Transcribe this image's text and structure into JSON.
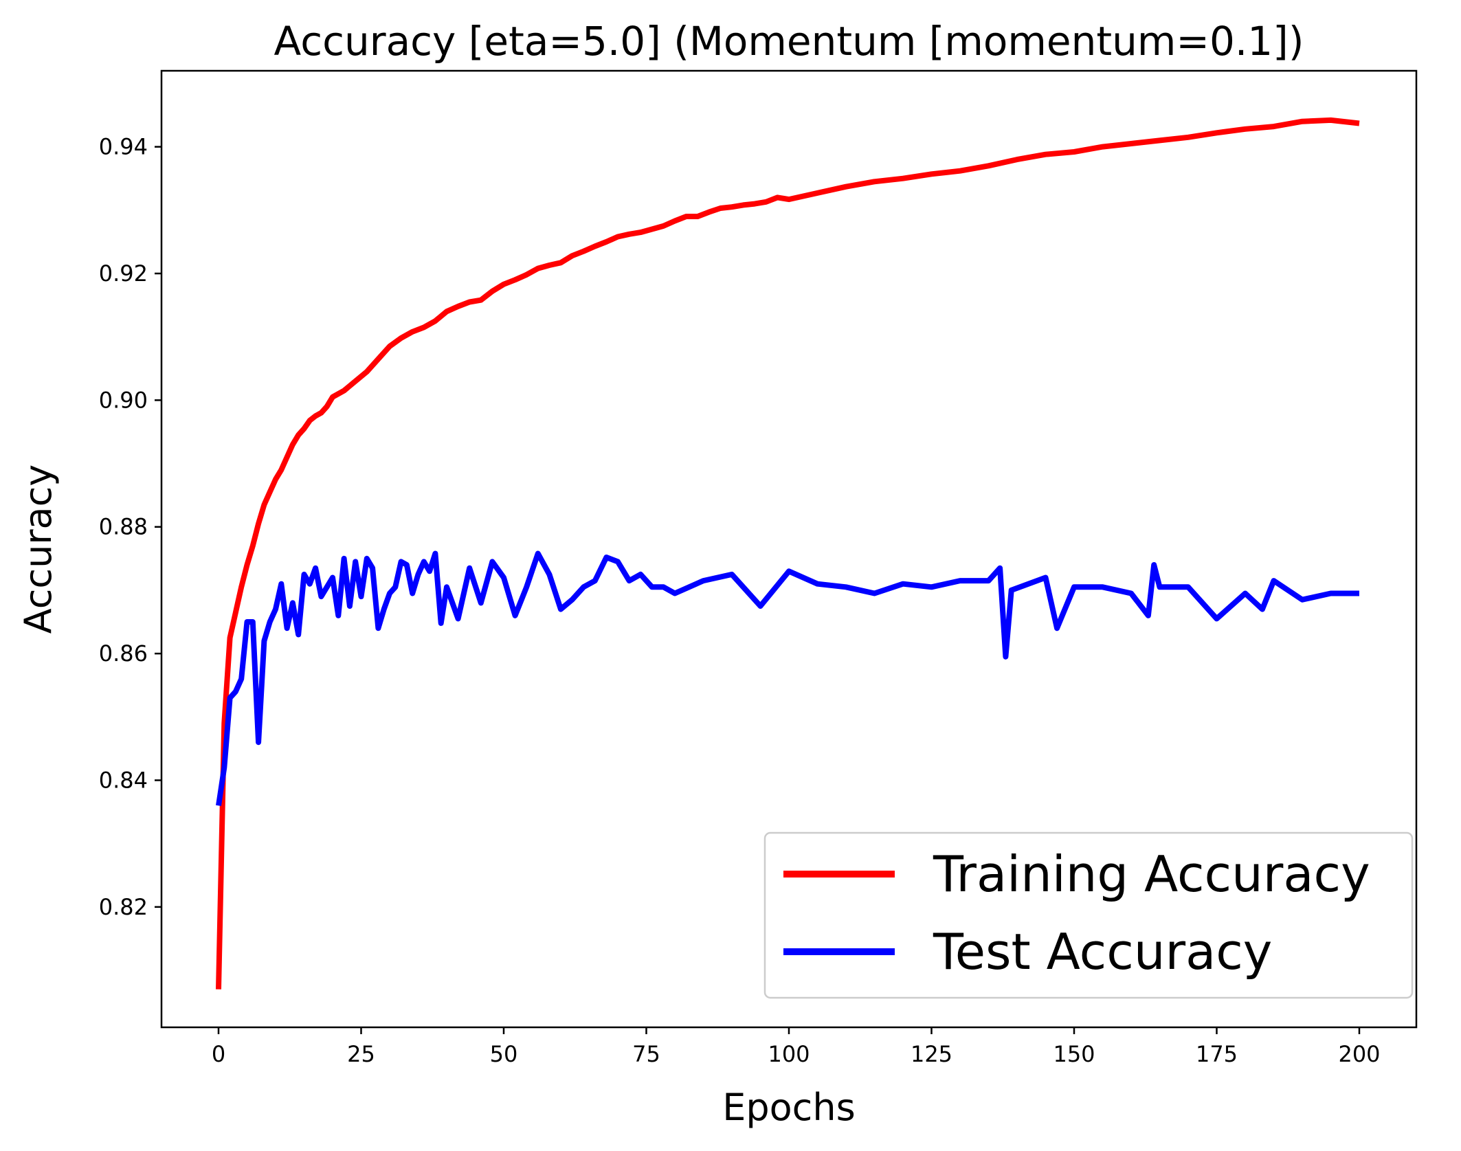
{
  "chart_data": {
    "type": "line",
    "title": "Accuracy [eta=5.0] (Momentum [momentum=0.1])",
    "xlabel": "Epochs",
    "ylabel": "Accuracy",
    "xlim": [
      -10,
      210
    ],
    "ylim": [
      0.801,
      0.952
    ],
    "xticks": [
      0,
      25,
      50,
      75,
      100,
      125,
      150,
      175,
      200
    ],
    "yticks": [
      0.82,
      0.84,
      0.86,
      0.88,
      0.9,
      0.92,
      0.94
    ],
    "xtick_labels": [
      "0",
      "25",
      "50",
      "75",
      "100",
      "125",
      "150",
      "175",
      "200"
    ],
    "ytick_labels": [
      "0.82",
      "0.84",
      "0.86",
      "0.88",
      "0.90",
      "0.92",
      "0.94"
    ],
    "grid": false,
    "legend_position": "lower-right",
    "series": [
      {
        "name": "Training Accuracy",
        "color": "#ff0000",
        "x": [
          0,
          1,
          2,
          3,
          4,
          5,
          6,
          7,
          8,
          9,
          10,
          11,
          12,
          13,
          14,
          15,
          16,
          17,
          18,
          19,
          20,
          22,
          24,
          26,
          28,
          30,
          32,
          34,
          36,
          38,
          40,
          42,
          44,
          46,
          48,
          50,
          52,
          54,
          56,
          58,
          60,
          62,
          64,
          66,
          68,
          70,
          72,
          74,
          76,
          78,
          80,
          82,
          84,
          86,
          88,
          90,
          92,
          94,
          96,
          98,
          100,
          105,
          110,
          115,
          120,
          125,
          130,
          135,
          140,
          145,
          150,
          155,
          160,
          165,
          170,
          175,
          180,
          185,
          190,
          195,
          200
        ],
        "values": [
          0.807,
          0.849,
          0.8625,
          0.8665,
          0.8705,
          0.874,
          0.877,
          0.8805,
          0.8835,
          0.8855,
          0.8875,
          0.889,
          0.891,
          0.893,
          0.8945,
          0.8955,
          0.8968,
          0.8975,
          0.898,
          0.899,
          0.9005,
          0.9015,
          0.903,
          0.9045,
          0.9065,
          0.9085,
          0.9098,
          0.9108,
          0.9115,
          0.9125,
          0.914,
          0.9148,
          0.9155,
          0.9158,
          0.9172,
          0.9183,
          0.919,
          0.9198,
          0.9208,
          0.9213,
          0.9217,
          0.9228,
          0.9235,
          0.9243,
          0.925,
          0.9258,
          0.9262,
          0.9265,
          0.927,
          0.9275,
          0.9283,
          0.929,
          0.929,
          0.9297,
          0.9303,
          0.9305,
          0.9308,
          0.931,
          0.9313,
          0.932,
          0.9317,
          0.9327,
          0.9337,
          0.9345,
          0.935,
          0.9357,
          0.9362,
          0.937,
          0.938,
          0.9388,
          0.9392,
          0.94,
          0.9405,
          0.941,
          0.9415,
          0.9422,
          0.9428,
          0.9432,
          0.944,
          0.9442,
          0.9437
        ]
      },
      {
        "name": "Test Accuracy",
        "color": "#0000ff",
        "x": [
          0,
          1,
          2,
          3,
          4,
          5,
          6,
          7,
          8,
          9,
          10,
          11,
          12,
          13,
          14,
          15,
          16,
          17,
          18,
          19,
          20,
          21,
          22,
          23,
          24,
          25,
          26,
          27,
          28,
          29,
          30,
          31,
          32,
          33,
          34,
          35,
          36,
          37,
          38,
          39,
          40,
          42,
          44,
          46,
          48,
          50,
          52,
          54,
          56,
          58,
          60,
          62,
          64,
          66,
          68,
          70,
          72,
          74,
          76,
          78,
          80,
          85,
          90,
          95,
          100,
          105,
          110,
          115,
          120,
          125,
          130,
          135,
          137,
          138,
          139,
          145,
          147,
          150,
          155,
          160,
          163,
          164,
          165,
          170,
          175,
          180,
          183,
          185,
          190,
          195,
          200
        ],
        "values": [
          0.836,
          0.842,
          0.853,
          0.854,
          0.856,
          0.865,
          0.865,
          0.846,
          0.862,
          0.865,
          0.867,
          0.871,
          0.864,
          0.868,
          0.863,
          0.8725,
          0.871,
          0.8735,
          0.869,
          0.8705,
          0.872,
          0.866,
          0.875,
          0.8675,
          0.8745,
          0.869,
          0.875,
          0.8735,
          0.864,
          0.867,
          0.8695,
          0.8705,
          0.8745,
          0.874,
          0.8695,
          0.8725,
          0.8745,
          0.873,
          0.8758,
          0.8648,
          0.8705,
          0.8655,
          0.8735,
          0.868,
          0.8745,
          0.872,
          0.866,
          0.8705,
          0.8758,
          0.8725,
          0.867,
          0.8685,
          0.8705,
          0.8715,
          0.8752,
          0.8745,
          0.8715,
          0.8725,
          0.8705,
          0.8705,
          0.8695,
          0.8715,
          0.8725,
          0.8675,
          0.873,
          0.871,
          0.8705,
          0.8695,
          0.871,
          0.8705,
          0.8715,
          0.8715,
          0.8735,
          0.8595,
          0.87,
          0.872,
          0.864,
          0.8705,
          0.8705,
          0.8695,
          0.866,
          0.874,
          0.8705,
          0.8705,
          0.8655,
          0.8695,
          0.867,
          0.8715,
          0.8685,
          0.8695,
          0.8695
        ]
      }
    ]
  }
}
